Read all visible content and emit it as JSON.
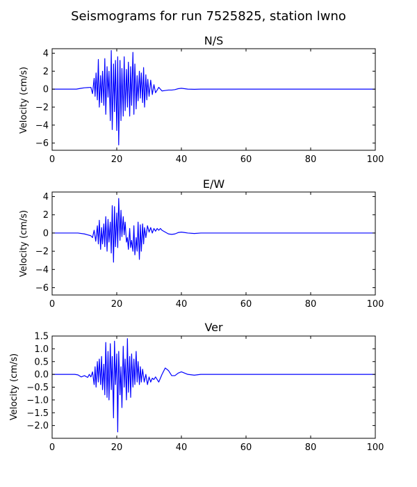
{
  "figure_title": "Seismograms for run 7525825, station lwno",
  "chart_data": [
    {
      "type": "line",
      "title": "N/S",
      "xlabel": "",
      "ylabel": "Velocity (cm/s)",
      "xlim": [
        0,
        100
      ],
      "ylim": [
        -6.8,
        4.5
      ],
      "xticks": [
        0,
        20,
        40,
        60,
        80,
        100
      ],
      "yticks": [
        -6,
        -4,
        -2,
        0,
        2,
        4
      ],
      "tick_labels_x": [
        "0",
        "20",
        "40",
        "60",
        "80",
        "100"
      ],
      "tick_labels_y": [
        "−6",
        "−4",
        "−2",
        "0",
        "2",
        "4"
      ],
      "color": "#0000ff",
      "x": [
        0,
        7.5,
        9,
        10,
        12,
        12.5,
        13,
        13.3,
        13.6,
        14,
        14.3,
        14.6,
        15,
        15.3,
        15.6,
        16,
        16.3,
        16.6,
        17,
        17.3,
        17.6,
        18,
        18.3,
        18.6,
        19,
        19.3,
        19.6,
        20,
        20.3,
        20.6,
        21,
        21.3,
        21.6,
        22,
        22.3,
        22.6,
        23,
        23.3,
        23.6,
        24,
        24.3,
        24.6,
        25,
        25.3,
        25.6,
        26,
        26.3,
        26.6,
        27,
        27.3,
        27.6,
        28,
        28.3,
        28.6,
        29,
        29.3,
        29.6,
        30,
        30.5,
        31,
        31.5,
        32,
        33,
        34,
        35,
        36,
        37,
        38,
        39,
        40,
        41,
        42,
        44,
        46,
        50,
        60,
        80,
        100
      ],
      "y": [
        0,
        0,
        0.1,
        0.15,
        0.2,
        -0.5,
        1.2,
        -0.8,
        1.8,
        -1.2,
        3.3,
        -2.0,
        1.5,
        -1.5,
        2.0,
        -1.8,
        3.4,
        -2.8,
        2.5,
        -0.9,
        2.0,
        -3.5,
        4.3,
        -4.5,
        2.8,
        -2.5,
        3.2,
        -4.6,
        3.6,
        -6.2,
        3.2,
        -3.5,
        2.3,
        -3.0,
        3.6,
        -2.4,
        2.2,
        -2.0,
        3.0,
        -3.0,
        2.5,
        -1.8,
        4.1,
        -2.8,
        2.8,
        -2.2,
        1.5,
        -1.3,
        2.0,
        -1.0,
        1.8,
        -1.5,
        2.4,
        -2.0,
        1.6,
        -1.2,
        1.1,
        -0.8,
        1.0,
        -0.6,
        0.5,
        -0.4,
        0.2,
        -0.2,
        -0.15,
        -0.1,
        -0.1,
        -0.05,
        0.05,
        0.1,
        0.05,
        0,
        -0.02,
        0,
        0,
        0,
        0,
        0
      ]
    },
    {
      "type": "line",
      "title": "E/W",
      "xlabel": "",
      "ylabel": "Velocity (cm/s)",
      "xlim": [
        0,
        100
      ],
      "ylim": [
        -6.8,
        4.5
      ],
      "xticks": [
        0,
        20,
        40,
        60,
        80,
        100
      ],
      "yticks": [
        -6,
        -4,
        -2,
        0,
        2,
        4
      ],
      "tick_labels_x": [
        "0",
        "20",
        "40",
        "60",
        "80",
        "100"
      ],
      "tick_labels_y": [
        "−6",
        "−4",
        "−2",
        "0",
        "2",
        "4"
      ],
      "color": "#0000ff",
      "x": [
        0,
        8,
        10,
        11,
        12,
        12.5,
        13,
        13.5,
        14,
        14.3,
        14.6,
        15,
        15.3,
        15.6,
        16,
        16.3,
        16.6,
        17,
        17.3,
        17.6,
        18,
        18.3,
        18.6,
        19,
        19.3,
        19.6,
        20,
        20.3,
        20.6,
        21,
        21.3,
        21.6,
        22,
        22.3,
        22.6,
        23,
        23.3,
        23.6,
        24,
        24.3,
        24.6,
        25,
        25.3,
        25.6,
        26,
        26.3,
        26.6,
        27,
        27.3,
        27.6,
        28,
        28.3,
        28.6,
        29,
        29.5,
        30,
        30.5,
        31,
        31.5,
        32,
        32.5,
        33,
        33.5,
        34,
        35,
        36,
        37,
        38,
        39,
        40,
        41,
        42,
        44,
        46,
        50,
        60,
        80,
        100
      ],
      "y": [
        0,
        0,
        -0.1,
        -0.2,
        -0.3,
        -0.5,
        0.3,
        -0.9,
        0.8,
        -1.2,
        1.4,
        -1.8,
        0.6,
        -1.2,
        1.0,
        -1.5,
        1.8,
        -2.0,
        1.5,
        -1.0,
        1.2,
        -2.2,
        3.0,
        -3.2,
        2.9,
        -1.5,
        2.2,
        -1.6,
        3.8,
        -0.8,
        2.5,
        -0.4,
        1.8,
        -0.2,
        1.2,
        -1.0,
        -0.5,
        -1.8,
        0.5,
        -1.6,
        -0.8,
        -2.0,
        0.8,
        -2.4,
        -0.5,
        -2.0,
        1.2,
        -2.9,
        0.9,
        -2.0,
        1.0,
        -1.2,
        0.6,
        -0.5,
        0.8,
        0.1,
        0.6,
        0.0,
        0.5,
        0.2,
        0.5,
        0.3,
        0.5,
        0.3,
        0.1,
        -0.1,
        -0.15,
        -0.1,
        0.05,
        0.1,
        0.05,
        0,
        -0.05,
        0,
        0,
        0,
        0,
        0
      ]
    },
    {
      "type": "line",
      "title": "Ver",
      "xlabel": "",
      "ylabel": "Velocity (cm/s)",
      "xlim": [
        0,
        100
      ],
      "ylim": [
        -2.5,
        1.5
      ],
      "xticks": [
        0,
        20,
        40,
        60,
        80,
        100
      ],
      "yticks": [
        -2.0,
        -1.5,
        -1.0,
        -0.5,
        0.0,
        0.5,
        1.0,
        1.5
      ],
      "tick_labels_x": [
        "0",
        "20",
        "40",
        "60",
        "80",
        "100"
      ],
      "tick_labels_y": [
        "−2.0",
        "−1.5",
        "−1.0",
        "−0.5",
        "0.0",
        "0.5",
        "1.0",
        "1.5"
      ],
      "color": "#0000ff",
      "x": [
        0,
        7,
        8,
        9,
        10,
        11,
        11.5,
        12,
        12.5,
        13,
        13.3,
        13.6,
        14,
        14.3,
        14.6,
        15,
        15.3,
        15.6,
        16,
        16.3,
        16.6,
        17,
        17.3,
        17.6,
        18,
        18.3,
        18.6,
        19,
        19.3,
        19.6,
        20,
        20.3,
        20.6,
        21,
        21.3,
        21.6,
        22,
        22.3,
        22.6,
        23,
        23.3,
        23.6,
        24,
        24.3,
        24.6,
        25,
        25.3,
        25.6,
        26,
        26.3,
        26.6,
        27,
        27.3,
        27.6,
        28,
        28.5,
        29,
        29.5,
        30,
        30.5,
        31,
        31.5,
        32,
        33,
        34,
        35,
        36,
        37,
        38,
        39,
        40,
        41,
        42,
        44,
        46,
        50,
        60,
        80,
        100
      ],
      "y": [
        0,
        0,
        -0.02,
        -0.1,
        -0.05,
        -0.12,
        0,
        -0.1,
        0.1,
        -0.4,
        0.3,
        -0.5,
        0.5,
        -0.3,
        0.6,
        -0.4,
        0.7,
        -0.6,
        0.4,
        -0.8,
        1.25,
        -0.9,
        0.9,
        -1.0,
        1.2,
        -0.6,
        0.7,
        -1.7,
        1.3,
        -0.4,
        0.8,
        -2.25,
        0.9,
        -0.8,
        0.3,
        -1.3,
        1.1,
        -0.5,
        0.6,
        -1.0,
        1.4,
        -0.7,
        0.7,
        -0.9,
        0.8,
        -0.5,
        0.6,
        -0.4,
        0.9,
        -0.3,
        0.5,
        -0.4,
        0.3,
        -0.3,
        0.2,
        -0.3,
        0.0,
        -0.4,
        -0.1,
        -0.3,
        -0.15,
        -0.2,
        -0.1,
        -0.3,
        0.0,
        0.25,
        0.15,
        -0.05,
        -0.05,
        0.05,
        0.1,
        0.05,
        0,
        -0.03,
        0,
        0,
        0,
        0,
        0
      ]
    }
  ]
}
